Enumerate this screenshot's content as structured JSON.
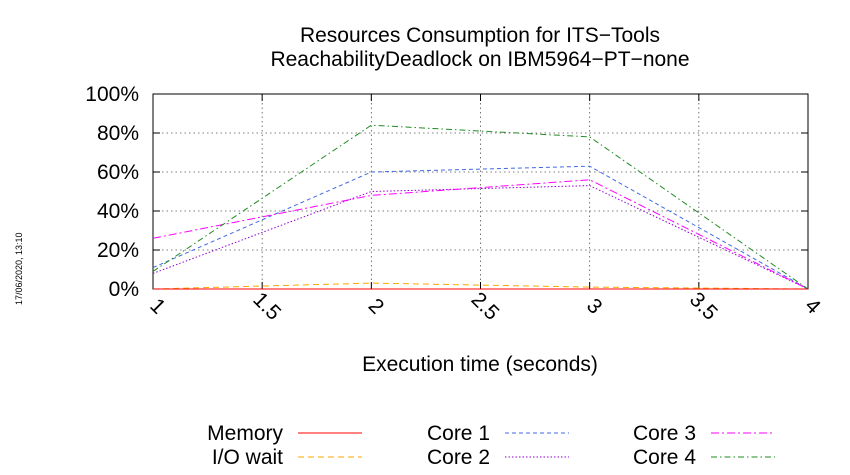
{
  "timestamp": "17/06/2020, 13:10",
  "chart_data": {
    "type": "line",
    "title_lines": [
      "Resources Consumption for ITS−Tools",
      "ReachabilityDeadlock on IBM5964−PT−none"
    ],
    "xlabel": "Execution time (seconds)",
    "ylabel": "",
    "x_ticks": [
      "1",
      "1.5",
      "2",
      "2.5",
      "3",
      "3.5",
      "4"
    ],
    "y_ticks": [
      "0%",
      "20%",
      "40%",
      "60%",
      "80%",
      "100%"
    ],
    "xlim": [
      1,
      4
    ],
    "ylim": [
      0,
      100
    ],
    "grid": true,
    "legend_position": "bottom",
    "x": [
      1,
      2,
      3,
      4
    ],
    "series": [
      {
        "name": "Memory",
        "color": "#ff0000",
        "dash": "",
        "values": [
          0,
          0,
          0,
          0
        ]
      },
      {
        "name": "I/O wait",
        "color": "#ffa500",
        "dash": "6 4",
        "values": [
          0,
          3,
          1,
          0
        ]
      },
      {
        "name": "Core 1",
        "color": "#4169e1",
        "dash": "4 3",
        "values": [
          11,
          60,
          63,
          0
        ]
      },
      {
        "name": "Core 2",
        "color": "#9400d3",
        "dash": "1.5 2",
        "values": [
          8,
          50,
          53,
          0
        ]
      },
      {
        "name": "Core 3",
        "color": "#ff00ff",
        "dash": "8 3 2 3",
        "values": [
          26,
          48,
          56,
          0
        ]
      },
      {
        "name": "Core 4",
        "color": "#228b22",
        "dash": "6 3 1.5 3",
        "values": [
          9,
          84,
          78,
          0
        ]
      }
    ]
  }
}
